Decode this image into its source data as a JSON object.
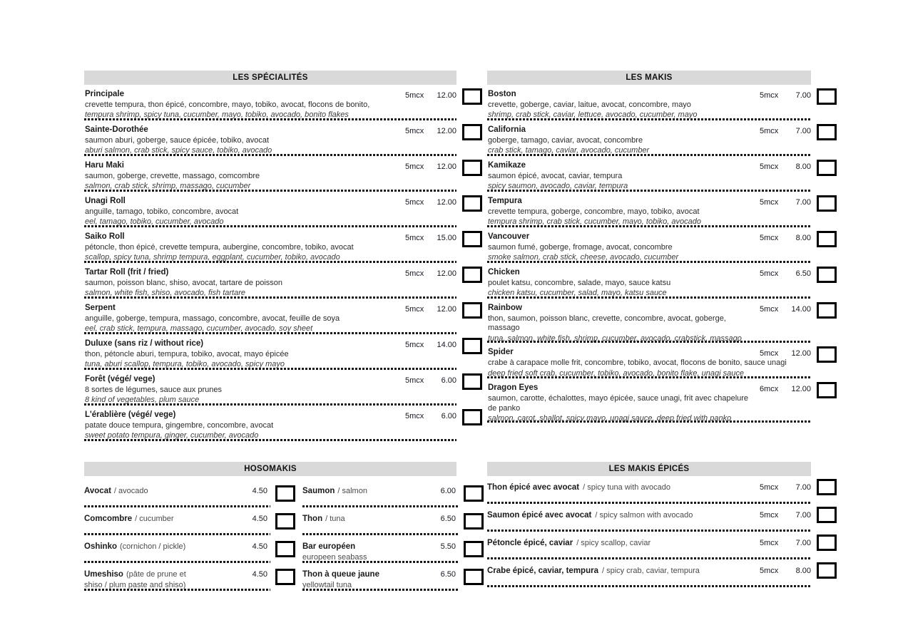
{
  "colors": {
    "header_bg": "#d9d9d9",
    "checkbox_border": "#000000",
    "divider": "#191919",
    "text": "#1a1a1a"
  },
  "sections": {
    "specialites": {
      "title": "LES SPÉCIALITÉS",
      "items": [
        {
          "name": "Principale",
          "fr": "crevette tempura, thon épicé, concombre, mayo, tobiko, avocat, flocons de bonito,",
          "en": "tempura shrimp, spicy tuna, cucumber, mayo, tobiko, avocado, bonito flakes",
          "qty": "5mcx",
          "price": "12.00"
        },
        {
          "name": "Sainte-Dorothée",
          "fr": "saumon aburi, goberge, sauce épicée, tobiko, avocat",
          "en": "aburi salmon, crab stick, spicy sauce, tobiko, avocado",
          "qty": "5mcx",
          "price": "12.00"
        },
        {
          "name": "Haru Maki",
          "fr": "saumon, goberge, crevette, massago, comcombre",
          "en": "salmon, crab stick, shrimp, massago, cucumber",
          "qty": "5mcx",
          "price": "12.00"
        },
        {
          "name": "Unagi Roll",
          "fr": "anguille, tamago, tobiko, concombre, avocat",
          "en": "eel, tamago, tobiko, cucumber, avocado",
          "qty": "5mcx",
          "price": "12.00"
        },
        {
          "name": "Saiko Roll",
          "fr": "pétoncle, thon épicé, crevette tempura, aubergine, concombre, tobiko, avocat",
          "en": "scallop, spicy tuna, shrimp tempura, eggplant, cucumber, tobiko, avocado",
          "qty": "5mcx",
          "price": "15.00"
        },
        {
          "name": "Tartar Roll (frit / fried)",
          "fr": "saumon, poisson blanc, shiso, avocat, tartare de poisson",
          "en": "salmon, white fish, shiso, avocado, fish tartare",
          "qty": "5mcx",
          "price": "12.00"
        },
        {
          "name": "Serpent",
          "fr": "anguille, goberge, tempura, massago, concombre, avocat, feuille de soya",
          "en": "eel, crab stick, tempura, massago, cucumber, avocado, soy sheet",
          "qty": "5mcx",
          "price": "12.00"
        },
        {
          "name": "Duluxe (sans riz / without rice)",
          "fr": "thon, pétoncle aburi, tempura, tobiko, avocat, mayo épicée",
          "en": "tuna, aburi scallop, tempura, tobiko, avocado, spicy mayo",
          "qty": "5mcx",
          "price": "14.00"
        },
        {
          "name": "Forêt (végé/ vege)",
          "fr": "8 sortes de légumes, sauce aux prunes",
          "en": "8 kind of vegetables, plum sauce",
          "qty": "5mcx",
          "price": "6.00"
        },
        {
          "name": "L'érablière (végé/ vege)",
          "fr": "patate douce tempura, gingembre, concombre, avocat",
          "en": "sweet potato tempura, ginger, cucumber, avocado",
          "qty": "5mcx",
          "price": "6.00"
        }
      ]
    },
    "makis": {
      "title": "LES MAKIS",
      "items": [
        {
          "name": "Boston",
          "fr": "crevette, goberge, caviar, laitue, avocat, concombre, mayo",
          "en": "shrimp, crab stick, caviar, lettuce, avocado, cucumber, mayo",
          "qty": "5mcx",
          "price": "7.00"
        },
        {
          "name": "California",
          "fr": "goberge, tamago, caviar, avocat, concombre",
          "en": "crab stick, tamago, caviar, avocado, cucumber",
          "qty": "5mcx",
          "price": "7.00"
        },
        {
          "name": "Kamikaze",
          "fr": "saumon épicé, avocat, caviar, tempura",
          "en": "spicy saumon, avocado, caviar, tempura",
          "qty": "5mcx",
          "price": "8.00"
        },
        {
          "name": "Tempura",
          "fr": "crevette tempura, goberge, concombre, mayo, tobiko, avocat",
          "en": "tempura shrimp, crab stick, cucumber, mayo, tobiko, avocado",
          "qty": "5mcx",
          "price": "7.00"
        },
        {
          "name": "Vancouver",
          "fr": "saumon fumé, goberge, fromage, avocat, concombre",
          "en": "smoke salmon, crab stick, cheese, avocado, cucumber",
          "qty": "5mcx",
          "price": "8.00"
        },
        {
          "name": "Chicken",
          "fr": "poulet katsu, concombre, salade, mayo, sauce katsu",
          "en": "chicken katsu, cucumber, salad, mayo, katsu sauce",
          "qty": "5mcx",
          "price": "6.50"
        },
        {
          "name": "Rainbow",
          "fr": "thon, saumon, poisson blanc, crevette, concombre, avocat, goberge,\nmassago",
          "en": "tuna, salmon, white fish, shrimp, cucumber, avocado, crabstick, massago",
          "qty": "5mcx",
          "price": "14.00"
        },
        {
          "name": "Spider",
          "fr": "crabe à carapace molle frit, concombre, tobiko, avocat, flocons de bonito, sauce unagi",
          "en": "deep fried soft crab, cucumber, tobiko, avocado, bonito flake, unagi sauce",
          "qty": "5mcx",
          "price": "12.00"
        },
        {
          "name": "Dragon Eyes",
          "fr": "saumon, carotte, échalottes, mayo épicée, sauce unagi, frit avec chapelure\nde panko",
          "en": "salmon, carot, shallot, spicy mayo, unagi sauce, deep fried with panko",
          "qty": "6mcx",
          "price": "12.00"
        }
      ]
    },
    "hosomakis": {
      "title": "HOSOMAKIS",
      "rows": [
        {
          "left": {
            "name": "Avocat",
            "rest": "/ avocado",
            "line2": "",
            "price": "4.50"
          },
          "right": {
            "name": "Saumon",
            "rest": "/ salmon",
            "line2": "",
            "price": "6.00"
          }
        },
        {
          "left": {
            "name": "Comcombre",
            "rest": "/ cucumber",
            "line2": "",
            "price": "4.50"
          },
          "right": {
            "name": "Thon",
            "rest": "/ tuna",
            "line2": "",
            "price": "6.50"
          }
        },
        {
          "left": {
            "name": "Oshinko",
            "rest": "(cornichon / pickle)",
            "line2": "",
            "price": "4.50"
          },
          "right": {
            "name": "Bar européen",
            "rest": "",
            "line2": "europeen seabass",
            "price": "5.50"
          }
        },
        {
          "left": {
            "name": "Umeshiso",
            "rest": "(pâte de prune et",
            "line2": "shiso / plum paste and shiso)",
            "price": "4.50"
          },
          "right": {
            "name": "Thon à queue jaune",
            "rest": "",
            "line2": "yellowtail tuna",
            "price": "6.50"
          }
        }
      ]
    },
    "makis_epices": {
      "title": "LES MAKIS ÉPICÉS",
      "items": [
        {
          "name": "Thon épicé avec avocat",
          "rest": "/ spicy tuna with avocado",
          "qty": "5mcx",
          "price": "7.00"
        },
        {
          "name": "Saumon épicé avec avocat",
          "rest": "/ spicy salmon with avocado",
          "qty": "5mcx",
          "price": "7.00"
        },
        {
          "name": "Pétoncle épicé, caviar",
          "rest": "/ spicy scallop, caviar",
          "qty": "5mcx",
          "price": "7.00"
        },
        {
          "name": "Crabe épicé, caviar, tempura",
          "rest": "/ spicy crab, caviar, tempura",
          "qty": "5mcx",
          "price": "8.00"
        }
      ]
    }
  }
}
